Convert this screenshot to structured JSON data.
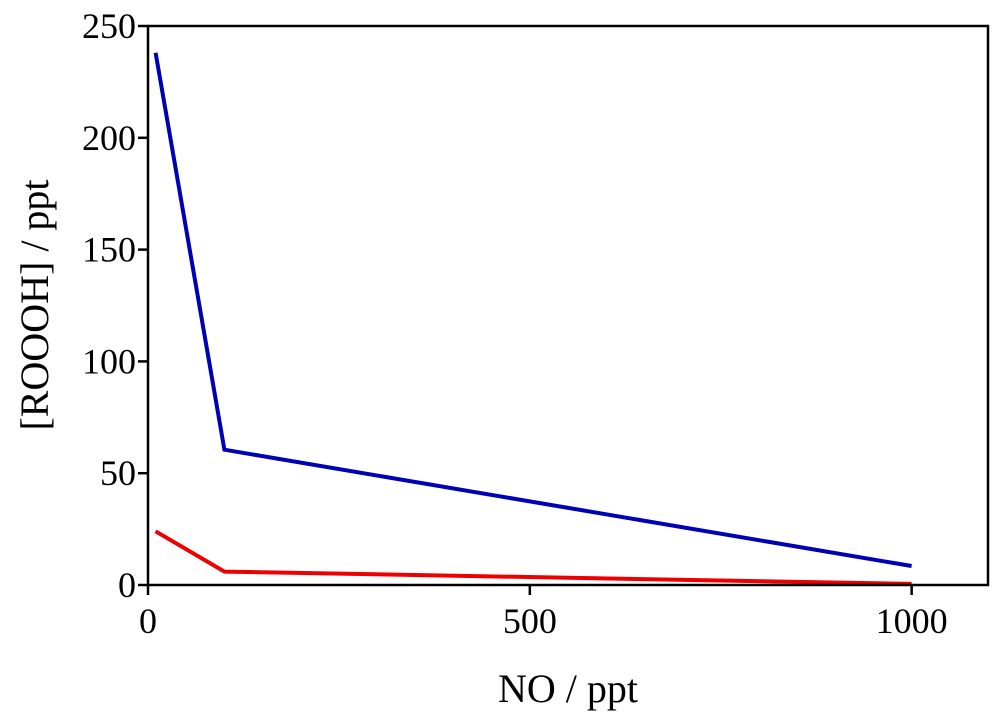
{
  "chart_data": {
    "type": "line",
    "title": "",
    "xlabel": "NO / ppt",
    "ylabel": "[ROOOH] / ppt",
    "xlim": [
      0,
      1100
    ],
    "ylim": [
      0,
      250
    ],
    "x_ticks": [
      0,
      500,
      1000
    ],
    "y_ticks": [
      0,
      50,
      100,
      150,
      200,
      250
    ],
    "x_tick_labels": [
      "0",
      "500",
      "1000"
    ],
    "y_tick_labels": [
      "0",
      "50",
      "100",
      "150",
      "200",
      "250"
    ],
    "grid": false,
    "legend": "none",
    "series": [
      {
        "color": "#0000b4",
        "x": [
          10,
          100,
          1000
        ],
        "y": [
          238,
          60.5,
          8.5
        ]
      },
      {
        "color": "#ee0000",
        "x": [
          10,
          100,
          1000
        ],
        "y": [
          24,
          6,
          0.5
        ]
      }
    ]
  }
}
